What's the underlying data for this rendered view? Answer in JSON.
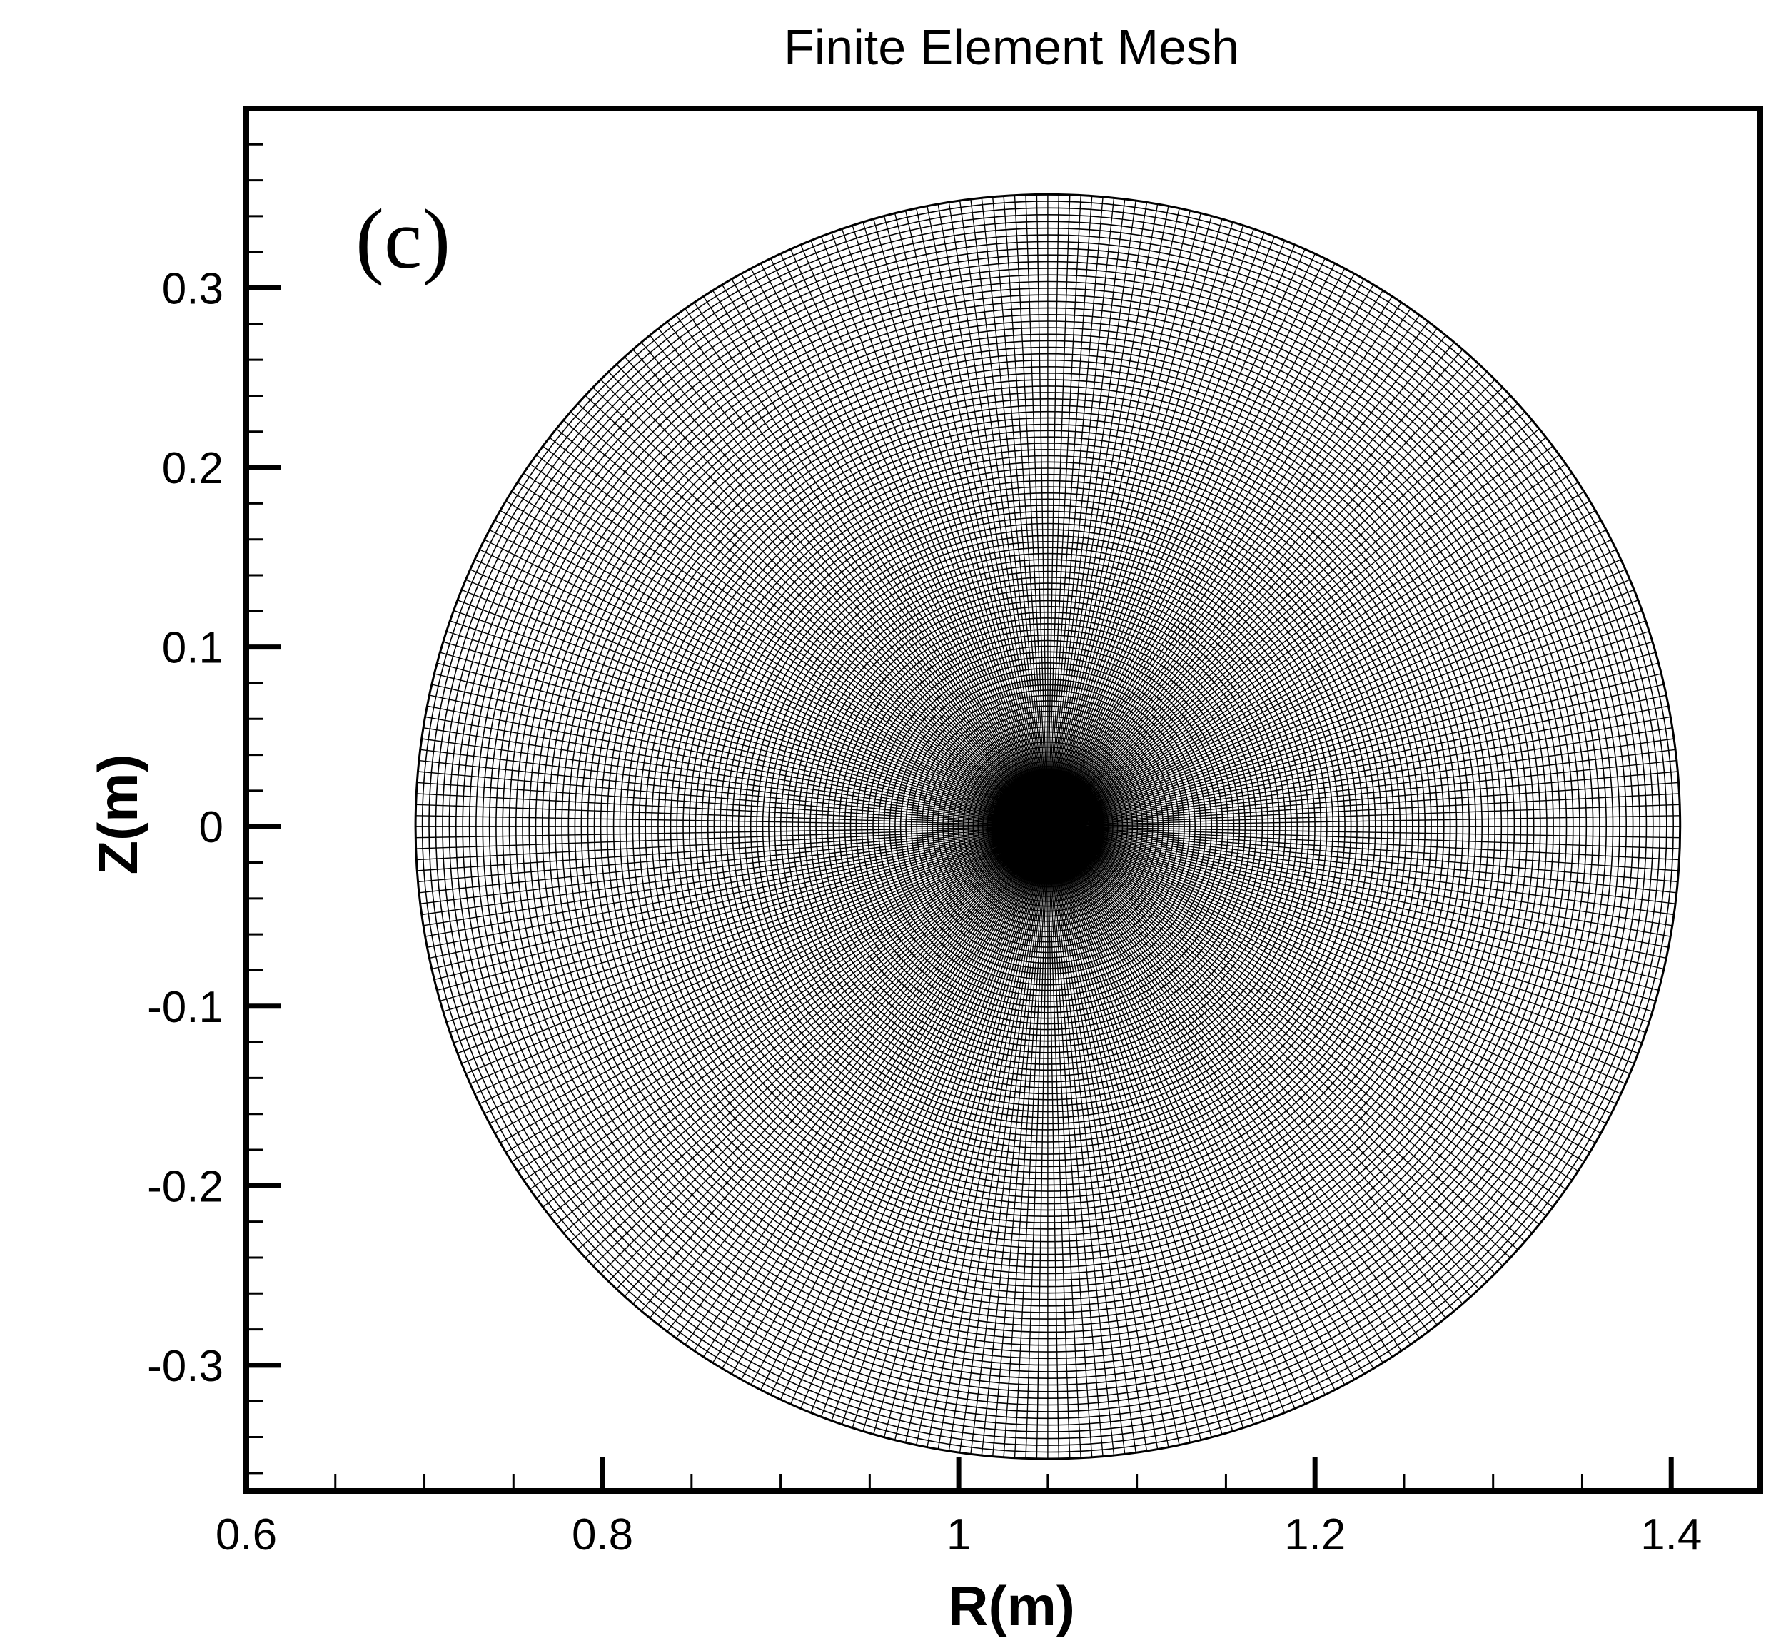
{
  "chart_data": {
    "type": "mesh",
    "title": "Finite Element Mesh",
    "panel_label": "(c)",
    "xlabel": "R(m)",
    "ylabel": "Z(m)",
    "xlim": [
      0.6,
      1.45
    ],
    "ylim": [
      -0.37,
      0.4
    ],
    "x_ticks": [
      0.6,
      0.8,
      1,
      1.2,
      1.4
    ],
    "x_tick_labels": [
      "0.6",
      "0.8",
      "1",
      "1.2",
      "1.4"
    ],
    "y_ticks": [
      -0.3,
      -0.2,
      -0.1,
      0,
      0.1,
      0.2,
      0.3
    ],
    "y_tick_labels": [
      "-0.3",
      "-0.2",
      "-0.1",
      "0",
      "0.1",
      "0.2",
      "0.3"
    ],
    "x_minor_step": 0.05,
    "y_minor_step": 0.02,
    "grid": false,
    "legend": "none",
    "mesh": {
      "shape": "circular disk",
      "center_r": 1.05,
      "center_z": 0,
      "radius": 0.355,
      "radial_lines": 360,
      "circular_lines": 110,
      "refinement": "dense near center"
    },
    "colors": {
      "mesh": "#000000",
      "frame": "#000000",
      "background": "#ffffff"
    }
  }
}
